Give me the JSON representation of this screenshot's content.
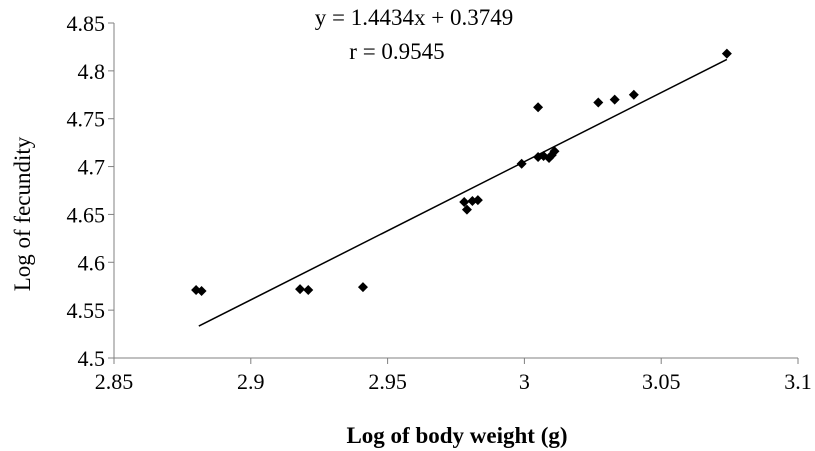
{
  "chart_data": {
    "type": "scatter",
    "xlabel": "Log of body weight (g)",
    "ylabel": "Log of fecundity",
    "xlim": [
      2.85,
      3.1
    ],
    "ylim": [
      4.5,
      4.85
    ],
    "x_ticks": [
      "2.85",
      "2.9",
      "2.95",
      "3",
      "3.05",
      "3.1"
    ],
    "y_ticks": [
      "4.5",
      "4.55",
      "4.6",
      "4.65",
      "4.7",
      "4.75",
      "4.8",
      "4.85"
    ],
    "grid": false,
    "legend": "none",
    "marker": "diamond",
    "marker_color": "#000000",
    "annotations": [
      "y = 1.4434x + 0.3749",
      "r = 0.9545"
    ],
    "trendline": {
      "slope": 1.4434,
      "intercept": 0.3749,
      "x_range": [
        2.881,
        3.074
      ]
    },
    "points": [
      [
        2.88,
        4.571
      ],
      [
        2.882,
        4.57
      ],
      [
        2.918,
        4.572
      ],
      [
        2.921,
        4.571
      ],
      [
        2.941,
        4.574
      ],
      [
        2.978,
        4.663
      ],
      [
        2.979,
        4.655
      ],
      [
        2.981,
        4.664
      ],
      [
        2.983,
        4.665
      ],
      [
        2.999,
        4.703
      ],
      [
        3.005,
        4.762
      ],
      [
        3.005,
        4.71
      ],
      [
        3.007,
        4.711
      ],
      [
        3.009,
        4.709
      ],
      [
        3.01,
        4.712
      ],
      [
        3.011,
        4.716
      ],
      [
        3.027,
        4.767
      ],
      [
        3.033,
        4.77
      ],
      [
        3.04,
        4.775
      ],
      [
        3.074,
        4.818
      ]
    ]
  }
}
